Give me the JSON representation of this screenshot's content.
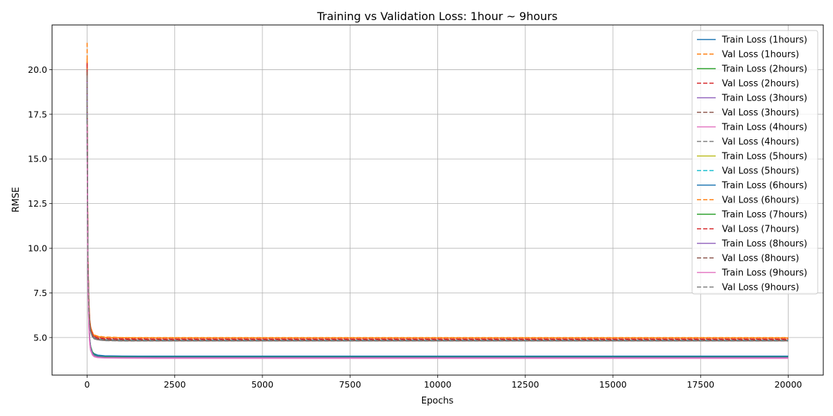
{
  "chart_data": {
    "type": "line",
    "title": "Training vs Validation Loss: 1hour ~ 9hours",
    "xlabel": "Epochs",
    "ylabel": "RMSE",
    "xlim": [
      -1000,
      21000
    ],
    "ylim": [
      2.9,
      22.5
    ],
    "xticks": [
      0,
      2500,
      5000,
      7500,
      10000,
      12500,
      15000,
      17500,
      20000
    ],
    "yticks": [
      5.0,
      7.5,
      10.0,
      12.5,
      15.0,
      17.5,
      20.0
    ],
    "grid": true,
    "legend_position": "top-right",
    "series": [
      {
        "name": "Train Loss (1hours)",
        "color": "#1f77b4",
        "dash": "solid",
        "x": [
          0,
          10,
          25,
          50,
          75,
          100,
          150,
          200,
          300,
          500,
          1000,
          2000,
          5000,
          10000,
          20000
        ],
        "y": [
          17.6,
          12.0,
          8.2,
          5.8,
          4.9,
          4.5,
          4.2,
          4.1,
          4.02,
          3.98,
          3.96,
          3.95,
          3.95,
          3.95,
          3.95
        ]
      },
      {
        "name": "Val Loss (1hours)",
        "color": "#ff7f0e",
        "dash": "dashed",
        "x": [
          0,
          10,
          25,
          50,
          75,
          100,
          150,
          200,
          300,
          500,
          1000,
          2000,
          5000,
          10000,
          20000
        ],
        "y": [
          21.5,
          14.0,
          9.5,
          7.0,
          6.0,
          5.6,
          5.3,
          5.15,
          5.08,
          5.03,
          5.0,
          5.0,
          5.0,
          5.0,
          5.0
        ]
      },
      {
        "name": "Train Loss (2hours)",
        "color": "#2ca02c",
        "dash": "solid",
        "x": [
          0,
          10,
          25,
          50,
          75,
          100,
          150,
          200,
          300,
          500,
          1000,
          2000,
          5000,
          10000,
          20000
        ],
        "y": [
          18.8,
          12.5,
          8.4,
          5.9,
          4.9,
          4.5,
          4.2,
          4.08,
          3.98,
          3.94,
          3.92,
          3.91,
          3.91,
          3.91,
          3.91
        ]
      },
      {
        "name": "Val Loss (2hours)",
        "color": "#d62728",
        "dash": "dashed",
        "x": [
          0,
          10,
          25,
          50,
          75,
          100,
          150,
          200,
          300,
          500,
          1000,
          2000,
          5000,
          10000,
          20000
        ],
        "y": [
          20.4,
          13.5,
          9.2,
          6.8,
          5.9,
          5.5,
          5.2,
          5.08,
          5.0,
          4.95,
          4.93,
          4.92,
          4.92,
          4.92,
          4.92
        ]
      },
      {
        "name": "Train Loss (3hours)",
        "color": "#9467bd",
        "dash": "solid",
        "x": [
          0,
          10,
          25,
          50,
          75,
          100,
          150,
          200,
          300,
          500,
          1000,
          2000,
          5000,
          10000,
          20000
        ],
        "y": [
          19.2,
          12.8,
          8.5,
          5.8,
          4.8,
          4.4,
          4.1,
          3.98,
          3.92,
          3.89,
          3.88,
          3.87,
          3.87,
          3.87,
          3.87
        ]
      },
      {
        "name": "Val Loss (3hours)",
        "color": "#8c564b",
        "dash": "dashed",
        "x": [
          0,
          10,
          25,
          50,
          75,
          100,
          150,
          200,
          300,
          500,
          1000,
          2000,
          5000,
          10000,
          20000
        ],
        "y": [
          20.1,
          13.4,
          9.1,
          6.7,
          5.8,
          5.4,
          5.1,
          5.0,
          4.92,
          4.88,
          4.86,
          4.85,
          4.85,
          4.85,
          4.85
        ]
      },
      {
        "name": "Train Loss (4hours)",
        "color": "#e377c2",
        "dash": "solid",
        "x": [
          0,
          10,
          25,
          50,
          75,
          100,
          150,
          200,
          300,
          500,
          1000,
          2000,
          5000,
          10000,
          20000
        ],
        "y": [
          17.2,
          11.6,
          7.9,
          5.6,
          4.7,
          4.3,
          4.05,
          3.95,
          3.9,
          3.87,
          3.86,
          3.85,
          3.85,
          3.85,
          3.85
        ]
      },
      {
        "name": "Val Loss (4hours)",
        "color": "#7f7f7f",
        "dash": "dashed",
        "x": [
          0,
          10,
          25,
          50,
          75,
          100,
          150,
          200,
          300,
          500,
          1000,
          2000,
          5000,
          10000,
          20000
        ],
        "y": [
          19.8,
          13.2,
          9.0,
          6.6,
          5.7,
          5.35,
          5.05,
          4.95,
          4.88,
          4.84,
          4.82,
          4.82,
          4.82,
          4.82,
          4.82
        ]
      },
      {
        "name": "Train Loss (5hours)",
        "color": "#bcbd22",
        "dash": "solid",
        "x": [
          0,
          10,
          25,
          50,
          75,
          100,
          150,
          200,
          300,
          500,
          1000,
          2000,
          5000,
          10000,
          20000
        ],
        "y": [
          18.0,
          12.0,
          8.1,
          5.7,
          4.8,
          4.4,
          4.1,
          3.98,
          3.91,
          3.88,
          3.87,
          3.86,
          3.86,
          3.86,
          3.86
        ]
      },
      {
        "name": "Val Loss (5hours)",
        "color": "#17becf",
        "dash": "dashed",
        "x": [
          0,
          10,
          25,
          50,
          75,
          100,
          150,
          200,
          300,
          500,
          1000,
          2000,
          5000,
          10000,
          20000
        ],
        "y": [
          17.5,
          12.2,
          8.6,
          6.5,
          5.7,
          5.35,
          5.08,
          4.98,
          4.91,
          4.87,
          4.85,
          4.85,
          4.85,
          4.85,
          4.85
        ]
      },
      {
        "name": "Train Loss (6hours)",
        "color": "#1f77b4",
        "dash": "solid",
        "x": [
          0,
          10,
          25,
          50,
          75,
          100,
          150,
          200,
          300,
          500,
          1000,
          2000,
          5000,
          10000,
          20000
        ],
        "y": [
          18.5,
          12.3,
          8.3,
          5.8,
          4.85,
          4.45,
          4.15,
          4.05,
          3.99,
          3.97,
          3.96,
          3.96,
          3.96,
          3.96,
          3.96
        ]
      },
      {
        "name": "Val Loss (6hours)",
        "color": "#ff7f0e",
        "dash": "dashed",
        "x": [
          0,
          10,
          25,
          50,
          75,
          100,
          150,
          200,
          300,
          500,
          1000,
          2000,
          5000,
          10000,
          20000
        ],
        "y": [
          20.6,
          13.7,
          9.3,
          6.9,
          6.0,
          5.6,
          5.25,
          5.12,
          5.05,
          5.01,
          4.99,
          4.98,
          4.98,
          4.98,
          4.98
        ]
      },
      {
        "name": "Train Loss (7hours)",
        "color": "#2ca02c",
        "dash": "solid",
        "x": [
          0,
          10,
          25,
          50,
          75,
          100,
          150,
          200,
          300,
          500,
          1000,
          2000,
          5000,
          10000,
          20000
        ],
        "y": [
          19.0,
          12.6,
          8.4,
          5.85,
          4.85,
          4.45,
          4.12,
          4.0,
          3.94,
          3.91,
          3.9,
          3.89,
          3.89,
          3.89,
          3.89
        ]
      },
      {
        "name": "Val Loss (7hours)",
        "color": "#d62728",
        "dash": "dashed",
        "x": [
          0,
          10,
          25,
          50,
          75,
          100,
          150,
          200,
          300,
          500,
          1000,
          2000,
          5000,
          10000,
          20000
        ],
        "y": [
          20.3,
          13.5,
          9.2,
          6.8,
          5.9,
          5.5,
          5.18,
          5.05,
          4.97,
          4.93,
          4.91,
          4.9,
          4.9,
          4.9,
          4.9
        ]
      },
      {
        "name": "Train Loss (8hours)",
        "color": "#9467bd",
        "dash": "solid",
        "x": [
          0,
          10,
          25,
          50,
          75,
          100,
          150,
          200,
          300,
          500,
          1000,
          2000,
          5000,
          10000,
          20000
        ],
        "y": [
          19.5,
          12.9,
          8.5,
          5.85,
          4.82,
          4.42,
          4.1,
          3.98,
          3.92,
          3.89,
          3.88,
          3.88,
          3.88,
          3.88,
          3.88
        ]
      },
      {
        "name": "Val Loss (8hours)",
        "color": "#8c564b",
        "dash": "dashed",
        "x": [
          0,
          10,
          25,
          50,
          75,
          100,
          150,
          200,
          300,
          500,
          1000,
          2000,
          5000,
          10000,
          20000
        ],
        "y": [
          19.9,
          13.3,
          9.1,
          6.7,
          5.8,
          5.4,
          5.1,
          4.97,
          4.9,
          4.86,
          4.84,
          4.83,
          4.83,
          4.83,
          4.83
        ]
      },
      {
        "name": "Train Loss (9hours)",
        "color": "#e377c2",
        "dash": "solid",
        "x": [
          0,
          10,
          25,
          50,
          75,
          100,
          150,
          200,
          300,
          500,
          1000,
          2000,
          5000,
          10000,
          20000
        ],
        "y": [
          17.0,
          11.5,
          7.8,
          5.55,
          4.65,
          4.28,
          4.03,
          3.93,
          3.88,
          3.86,
          3.85,
          3.84,
          3.84,
          3.84,
          3.84
        ]
      },
      {
        "name": "Val Loss (9hours)",
        "color": "#7f7f7f",
        "dash": "dashed",
        "x": [
          0,
          10,
          25,
          50,
          75,
          100,
          150,
          200,
          300,
          500,
          1000,
          2000,
          5000,
          10000,
          20000
        ],
        "y": [
          19.6,
          13.1,
          9.0,
          6.6,
          5.7,
          5.33,
          5.04,
          4.93,
          4.87,
          4.83,
          4.81,
          4.81,
          4.81,
          4.81,
          4.81
        ]
      }
    ]
  }
}
